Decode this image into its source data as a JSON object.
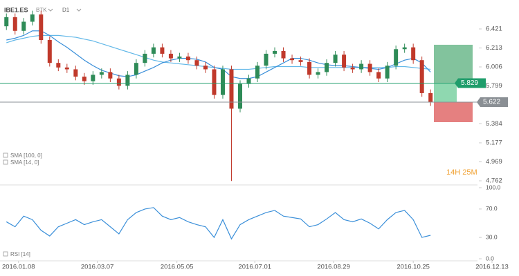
{
  "header": {
    "symbol": "IBE1.ES",
    "broker": "BTK",
    "timeframe": "D1"
  },
  "countdown": "14H 25M",
  "chart_data": [
    {
      "type": "candlestick",
      "open": [
        6.45,
        6.55,
        6.4,
        6.5,
        6.58,
        6.3,
        6.05,
        6.0,
        5.98,
        5.9,
        5.85,
        5.92,
        5.95,
        5.88,
        5.8,
        5.92,
        6.05,
        6.15,
        6.22,
        6.15,
        6.1,
        6.12,
        6.08,
        6.02,
        5.98,
        5.7,
        5.98,
        5.55,
        5.82,
        5.88,
        6.02,
        6.15,
        6.18,
        6.1,
        6.08,
        6.06,
        5.92,
        5.95,
        6.05,
        6.14,
        6.0,
        5.98,
        6.04,
        5.95,
        5.88,
        6.02,
        6.2,
        6.22,
        6.08,
        5.72
      ],
      "high": [
        6.59,
        6.59,
        6.54,
        6.62,
        6.62,
        6.34,
        6.09,
        6.04,
        6.02,
        5.94,
        5.96,
        5.99,
        5.99,
        5.92,
        5.96,
        6.09,
        6.19,
        6.26,
        6.26,
        6.19,
        6.16,
        6.16,
        6.12,
        6.06,
        6.02,
        6.02,
        6.02,
        5.86,
        5.92,
        6.06,
        6.19,
        6.22,
        6.22,
        6.14,
        6.12,
        6.1,
        5.99,
        6.09,
        6.18,
        6.18,
        6.04,
        6.08,
        6.08,
        5.99,
        6.06,
        6.24,
        6.26,
        6.26,
        6.12,
        5.76
      ],
      "low": [
        6.41,
        6.36,
        6.36,
        6.46,
        6.26,
        6.01,
        5.96,
        5.94,
        5.86,
        5.81,
        5.81,
        5.88,
        5.84,
        5.76,
        5.76,
        5.88,
        6.01,
        6.11,
        6.11,
        6.06,
        6.06,
        6.04,
        5.98,
        5.94,
        5.66,
        5.66,
        4.76,
        5.51,
        5.78,
        5.84,
        5.98,
        6.11,
        6.06,
        6.04,
        6.02,
        5.88,
        5.88,
        5.91,
        6.01,
        5.96,
        5.94,
        5.94,
        5.91,
        5.84,
        5.84,
        5.98,
        6.16,
        6.04,
        5.68,
        5.58
      ],
      "close": [
        6.55,
        6.4,
        6.5,
        6.58,
        6.3,
        6.05,
        6.0,
        5.98,
        5.9,
        5.85,
        5.92,
        5.95,
        5.88,
        5.8,
        5.92,
        6.05,
        6.15,
        6.22,
        6.15,
        6.1,
        6.12,
        6.08,
        6.02,
        5.98,
        5.7,
        5.98,
        5.55,
        5.82,
        5.88,
        6.02,
        6.15,
        6.18,
        6.1,
        6.08,
        6.06,
        5.92,
        5.95,
        6.05,
        6.14,
        6.0,
        5.98,
        6.04,
        5.95,
        5.88,
        6.02,
        6.2,
        6.22,
        6.08,
        5.72,
        5.622
      ],
      "up_color": "#2e8b57",
      "down_color": "#c0392b",
      "overlays": [
        {
          "name": "SMA [100, 0]",
          "color": "#62b8e8",
          "values": [
            6.27,
            6.3,
            6.32,
            6.34,
            6.35,
            6.35,
            6.35,
            6.34,
            6.33,
            6.31,
            6.29,
            6.26,
            6.23,
            6.2,
            6.17,
            6.14,
            6.11,
            6.08,
            6.06,
            6.05,
            6.04,
            6.03,
            6.02,
            6.01,
            6.0,
            5.99,
            5.98,
            5.98,
            5.98,
            5.99,
            6.0,
            6.01,
            6.01,
            6.01,
            6.01,
            6.0,
            6.0,
            6.0,
            6.0,
            6.0,
            6.0,
            6.0,
            6.0,
            6.0,
            6.0,
            6.01,
            6.01,
            6.0,
            5.99,
            5.98
          ]
        },
        {
          "name": "SMA [14, 0]",
          "color": "#3a8fd9",
          "values": [
            6.3,
            6.32,
            6.35,
            6.4,
            6.4,
            6.35,
            6.28,
            6.22,
            6.15,
            6.08,
            6.02,
            5.97,
            5.94,
            5.91,
            5.9,
            5.92,
            5.96,
            6.0,
            6.05,
            6.08,
            6.1,
            6.1,
            6.09,
            6.06,
            6.0,
            5.98,
            5.9,
            5.88,
            5.88,
            5.9,
            5.95,
            6.0,
            6.05,
            6.1,
            6.1,
            6.08,
            6.05,
            6.03,
            6.02,
            6.02,
            6.01,
            6.0,
            5.99,
            5.98,
            6.0,
            6.04,
            6.08,
            6.1,
            6.05,
            5.95
          ]
        }
      ],
      "ylim": [
        4.717,
        6.677
      ],
      "yticks": [
        6.421,
        6.213,
        6.006,
        5.799,
        5.384,
        5.177,
        4.969,
        4.762
      ],
      "xlim": [
        0,
        57
      ],
      "xticks": [
        {
          "value": 1.9,
          "label": "2016.01.08"
        },
        {
          "value": 11,
          "label": "2016.03.07"
        },
        {
          "value": 20.2,
          "label": "2016.05.05"
        },
        {
          "value": 29.2,
          "label": "2016.07.01"
        },
        {
          "value": 38.3,
          "label": "2016.08.29"
        },
        {
          "value": 47.5,
          "label": "2016.10.25"
        },
        {
          "value": 56.6,
          "label": "2016.12.13"
        }
      ],
      "levels": [
        {
          "value": 5.829,
          "color": "#1f9d6b"
        },
        {
          "value": 5.622,
          "color": "#8a8f94"
        }
      ],
      "trade": {
        "take_profit": 6.248,
        "entry": 5.829,
        "stop_loss": 5.403
      }
    },
    {
      "type": "line",
      "series": [
        {
          "name": "RSI [14]",
          "color": "#3a8fd9",
          "values": [
            52,
            45,
            60,
            55,
            40,
            32,
            45,
            50,
            55,
            48,
            52,
            55,
            45,
            35,
            55,
            65,
            70,
            72,
            60,
            55,
            58,
            52,
            48,
            45,
            30,
            55,
            28,
            48,
            55,
            60,
            65,
            68,
            60,
            58,
            56,
            45,
            48,
            56,
            65,
            55,
            52,
            56,
            50,
            42,
            55,
            65,
            68,
            55,
            30,
            33
          ]
        }
      ],
      "ylim": [
        0,
        100
      ],
      "yticks": [
        {
          "value": 100,
          "label": "100.0"
        },
        {
          "value": 70,
          "label": "70.0"
        },
        {
          "value": 30,
          "label": "30.0"
        },
        {
          "value": 0,
          "label": "0.0"
        }
      ]
    }
  ]
}
